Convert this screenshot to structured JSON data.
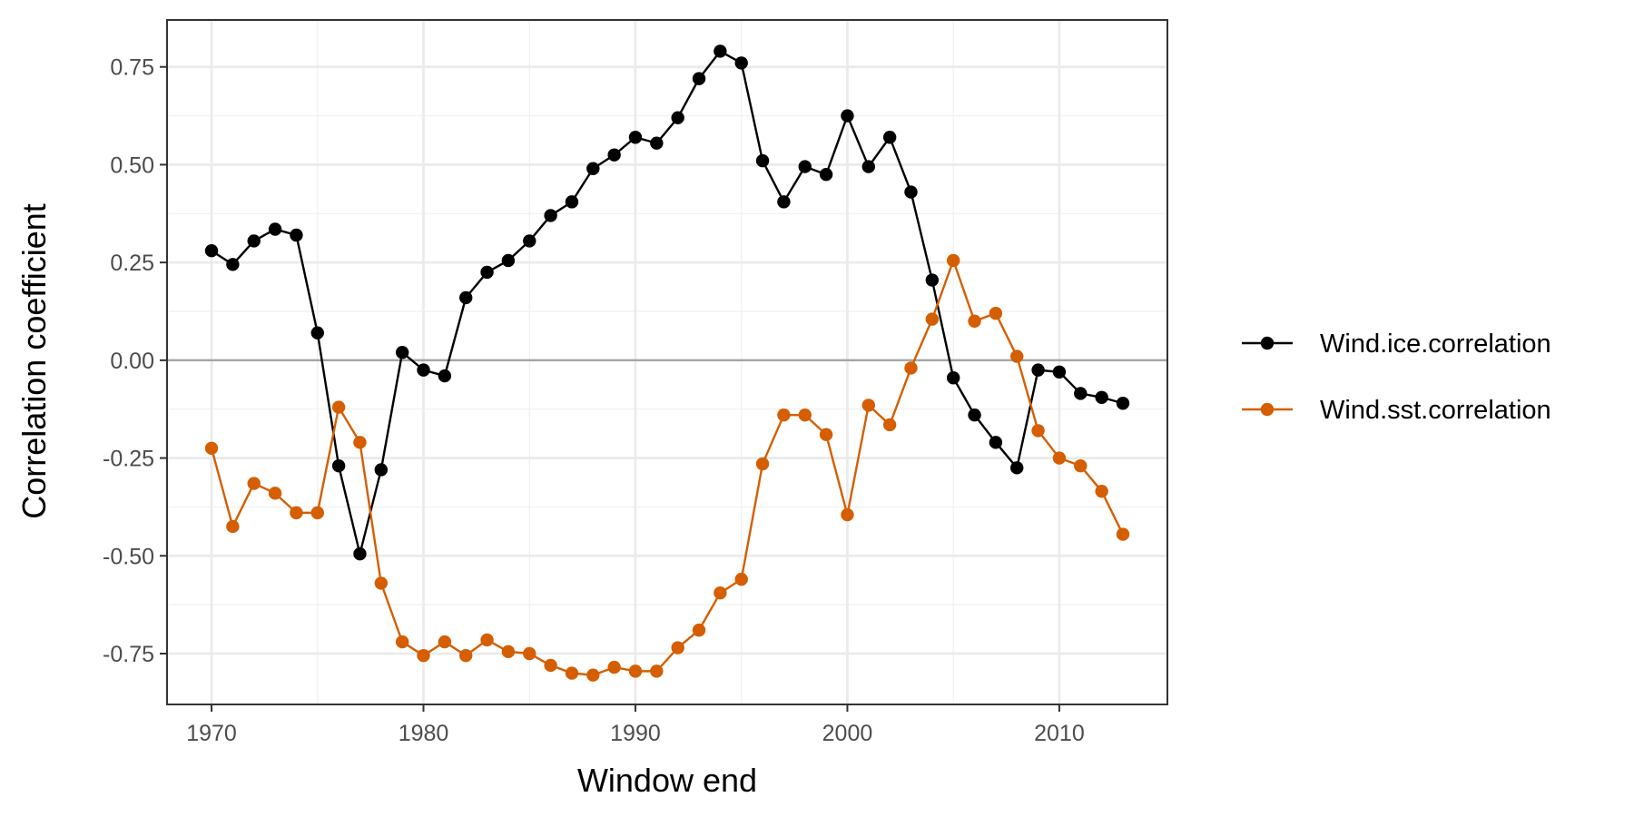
{
  "chart_data": {
    "type": "line",
    "xlabel": "Window end",
    "ylabel": "Correlation coefficient",
    "xlim": [
      1967.9,
      2015.1
    ],
    "ylim": [
      -0.88,
      0.87
    ],
    "x_ticks": [
      1970,
      1980,
      1990,
      2000,
      2010
    ],
    "x_tick_labels": [
      "1970",
      "1980",
      "1990",
      "2000",
      "2010"
    ],
    "y_ticks": [
      -0.75,
      -0.5,
      -0.25,
      0,
      0.25,
      0.5,
      0.75
    ],
    "y_tick_labels": [
      "-0.75",
      "-0.50",
      "-0.25",
      "0.00",
      "0.25",
      "0.50",
      "0.75"
    ],
    "grid": true,
    "zero_line": true,
    "legend_position": "right",
    "x": [
      1970,
      1971,
      1972,
      1973,
      1974,
      1975,
      1976,
      1977,
      1978,
      1979,
      1980,
      1981,
      1982,
      1983,
      1984,
      1985,
      1986,
      1987,
      1988,
      1989,
      1990,
      1991,
      1992,
      1993,
      1994,
      1995,
      1996,
      1997,
      1998,
      1999,
      2000,
      2001,
      2002,
      2003,
      2004,
      2005,
      2006,
      2007,
      2008,
      2009,
      2010,
      2011,
      2012,
      2013
    ],
    "series": [
      {
        "name": "Wind.ice.correlation",
        "color": "#000000",
        "values": [
          0.28,
          0.245,
          0.305,
          0.335,
          0.32,
          0.07,
          -0.27,
          -0.495,
          -0.28,
          0.02,
          -0.025,
          -0.04,
          0.16,
          0.225,
          0.255,
          0.305,
          0.37,
          0.405,
          0.49,
          0.525,
          0.57,
          0.555,
          0.62,
          0.72,
          0.79,
          0.76,
          0.51,
          0.405,
          0.495,
          0.475,
          0.625,
          0.495,
          0.57,
          0.43,
          0.205,
          -0.045,
          -0.14,
          -0.21,
          -0.275,
          -0.025,
          -0.03,
          -0.085,
          -0.095,
          -0.11
        ]
      },
      {
        "name": "Wind.sst.correlation",
        "color": "#D55E00",
        "values": [
          -0.225,
          -0.425,
          -0.315,
          -0.34,
          -0.39,
          -0.39,
          -0.12,
          -0.21,
          -0.57,
          -0.72,
          -0.755,
          -0.72,
          -0.755,
          -0.715,
          -0.745,
          -0.75,
          -0.78,
          -0.8,
          -0.805,
          -0.785,
          -0.795,
          -0.795,
          -0.735,
          -0.69,
          -0.595,
          -0.56,
          -0.265,
          -0.14,
          -0.14,
          -0.19,
          -0.395,
          -0.115,
          -0.165,
          -0.02,
          0.105,
          0.255,
          0.1,
          0.12,
          0.01,
          -0.18,
          -0.25,
          -0.27,
          -0.335,
          -0.445
        ]
      }
    ]
  }
}
